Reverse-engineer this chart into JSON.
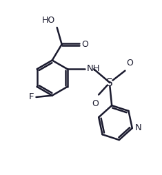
{
  "bg_color": "#ffffff",
  "line_color": "#1a1a2e",
  "line_width": 1.8,
  "figsize": [
    2.35,
    2.54
  ],
  "dpi": 100,
  "xlim": [
    0.0,
    10.0
  ],
  "ylim": [
    0.0,
    10.8
  ]
}
